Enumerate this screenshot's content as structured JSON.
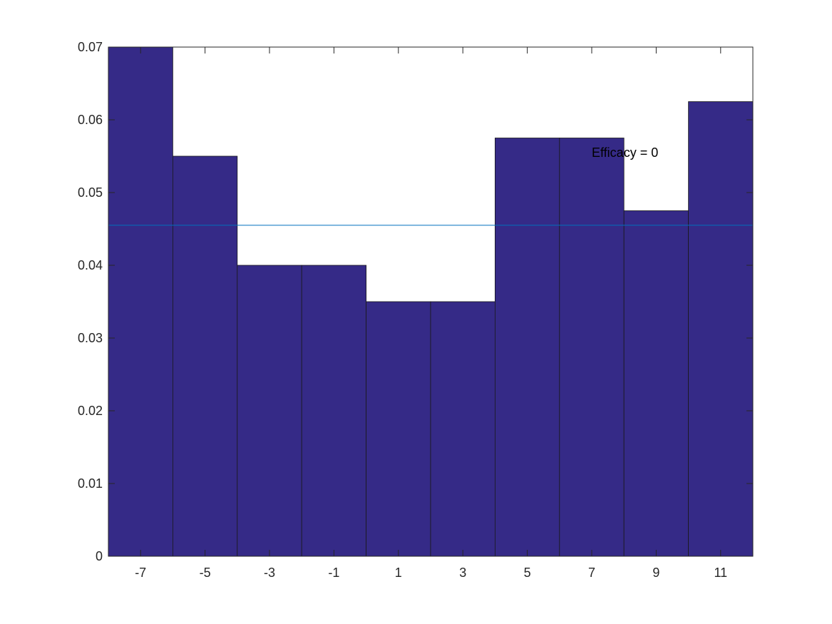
{
  "chart_data": {
    "type": "bar",
    "categories": [
      "-7",
      "-5",
      "-3",
      "-1",
      "1",
      "3",
      "5",
      "7",
      "9",
      "11"
    ],
    "x": [
      -7,
      -5,
      -3,
      -1,
      1,
      3,
      5,
      7,
      9,
      11
    ],
    "values": [
      0.07,
      0.055,
      0.04,
      0.04,
      0.035,
      0.035,
      0.0575,
      0.0575,
      0.0475,
      0.0625
    ],
    "bin_width": 2,
    "title": "",
    "xlabel": "",
    "ylabel": "",
    "xlim": [
      -8,
      12
    ],
    "ylim": [
      0,
      0.07
    ],
    "yticks": [
      0,
      0.01,
      0.02,
      0.03,
      0.04,
      0.05,
      0.06,
      0.07
    ],
    "ytick_labels": [
      "0",
      "0.01",
      "0.02",
      "0.03",
      "0.04",
      "0.05",
      "0.06",
      "0.07"
    ],
    "reference_line": {
      "y": 0.0455,
      "color": "#0072bd"
    },
    "annotation": {
      "text": "Efficacy = 0",
      "x": 7,
      "y": 0.0555
    },
    "bar_color": "#352a87",
    "grid": false,
    "legend": "none"
  }
}
